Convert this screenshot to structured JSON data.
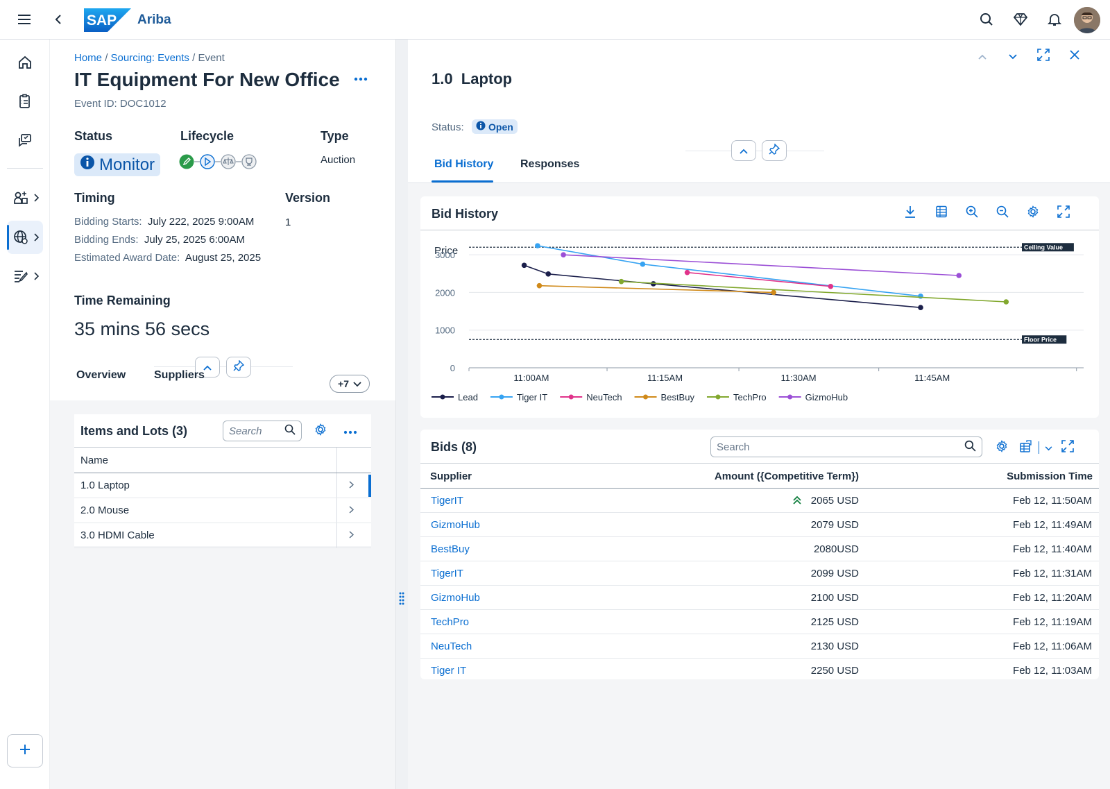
{
  "shell": {
    "logo_text": "SAP",
    "product": "Ariba"
  },
  "breadcrumb": {
    "home": "Home",
    "sourcing": "Sourcing: Events",
    "current": "Event",
    "sep": "/"
  },
  "event": {
    "title": "IT Equipment For New Office",
    "id": "Event ID: DOC1012",
    "status_label": "Status",
    "status_value": "Monitor",
    "lifecycle_label": "Lifecycle",
    "type_label": "Type",
    "type_value": "Auction",
    "timing_label": "Timing",
    "version_label": "Version",
    "version_value": "1",
    "bidding_starts_label": "Bidding Starts:",
    "bidding_starts_value": "July 222, 2025 9:00AM",
    "bidding_ends_label": "Bidding Ends:",
    "bidding_ends_value": "July 25, 2025 6:00AM",
    "award_label": "Estimated Award Date:",
    "award_value": "August 25, 2025",
    "time_remaining_label": "Time Remaining",
    "time_remaining_value": "35 mins 56 secs"
  },
  "left_tabs": {
    "overview": "Overview",
    "suppliers": "Suppliers",
    "more": "+7"
  },
  "items": {
    "title": "Items and Lots (3)",
    "search_placeholder": "Search",
    "column_name": "Name",
    "rows": [
      {
        "name": "1.0  Laptop"
      },
      {
        "name": "2.0 Mouse"
      },
      {
        "name": "3.0 HDMI Cable"
      }
    ]
  },
  "detail": {
    "title": "1.0  Laptop",
    "status_label": "Status:",
    "status_value": "Open",
    "tab_bid_history": "Bid History",
    "tab_responses": "Responses"
  },
  "bid_history": {
    "title": "Bid History"
  },
  "chart_data": {
    "type": "line",
    "ylabel": "Price",
    "ylim": [
      0,
      3500
    ],
    "yticks": [
      0,
      1000,
      2000,
      3000
    ],
    "x_ticks": [
      "11:00AM",
      "11:15AM",
      "11:30AM",
      "11:45AM"
    ],
    "x_tick_minutes": [
      0,
      15,
      30,
      45
    ],
    "xlim_minutes": [
      -7,
      62
    ],
    "legend_position": "bottom-left",
    "reference_lines": [
      {
        "label": "Ceiling Value",
        "value": 3200
      },
      {
        "label": "Floor Price",
        "value": 750
      }
    ],
    "series": [
      {
        "name": "Lead",
        "color": "#1b1f4b",
        "points": [
          [
            -0.8,
            2720
          ],
          [
            1.9,
            2490
          ],
          [
            13.7,
            2230
          ],
          [
            43.7,
            1600
          ]
        ]
      },
      {
        "name": "Tiger IT",
        "color": "#36a3f2",
        "points": [
          [
            0.7,
            3240
          ],
          [
            12.5,
            2750
          ],
          [
            43.7,
            1900
          ]
        ]
      },
      {
        "name": "NeuTech",
        "color": "#e0338a",
        "points": [
          [
            17.5,
            2530
          ],
          [
            33.6,
            2160
          ]
        ]
      },
      {
        "name": "BestBuy",
        "color": "#d08a1a",
        "points": [
          [
            0.9,
            2180
          ],
          [
            27.2,
            2000
          ]
        ]
      },
      {
        "name": "TechPro",
        "color": "#82a82e",
        "points": [
          [
            10.1,
            2290
          ],
          [
            53.3,
            1750
          ]
        ]
      },
      {
        "name": "GizmoHub",
        "color": "#9b4fd6",
        "points": [
          [
            3.6,
            3000
          ],
          [
            48.0,
            2450
          ]
        ]
      }
    ]
  },
  "bids": {
    "title": "Bids (8)",
    "search_placeholder": "Search",
    "col_supplier": "Supplier",
    "col_amount": "Amount ({Competitive Term})",
    "col_time": "Submission Time",
    "rows": [
      {
        "supplier": "TigerIT",
        "amount": "2065 USD",
        "time": "Feb 12, 11:50AM",
        "leading": true
      },
      {
        "supplier": "GizmoHub",
        "amount": "2079 USD",
        "time": "Feb 12, 11:49AM"
      },
      {
        "supplier": "BestBuy",
        "amount": "2080USD",
        "time": "Feb 12, 11:40AM"
      },
      {
        "supplier": "TigerIT",
        "amount": "2099 USD",
        "time": "Feb 12, 11:31AM"
      },
      {
        "supplier": "GizmoHub",
        "amount": "2100 USD",
        "time": "Feb 12, 11:20AM"
      },
      {
        "supplier": "TechPro",
        "amount": "2125 USD",
        "time": "Feb 12, 11:19AM"
      },
      {
        "supplier": "NeuTech",
        "amount": "2130 USD",
        "time": "Feb 12, 11:06AM"
      },
      {
        "supplier": "Tiger IT",
        "amount": "2250 USD",
        "time": "Feb 12, 11:03AM"
      }
    ]
  },
  "colors": {
    "accent": "#0a6ed1",
    "positive": "#107e3e",
    "lifecycle_done": "#2b9b4a"
  }
}
